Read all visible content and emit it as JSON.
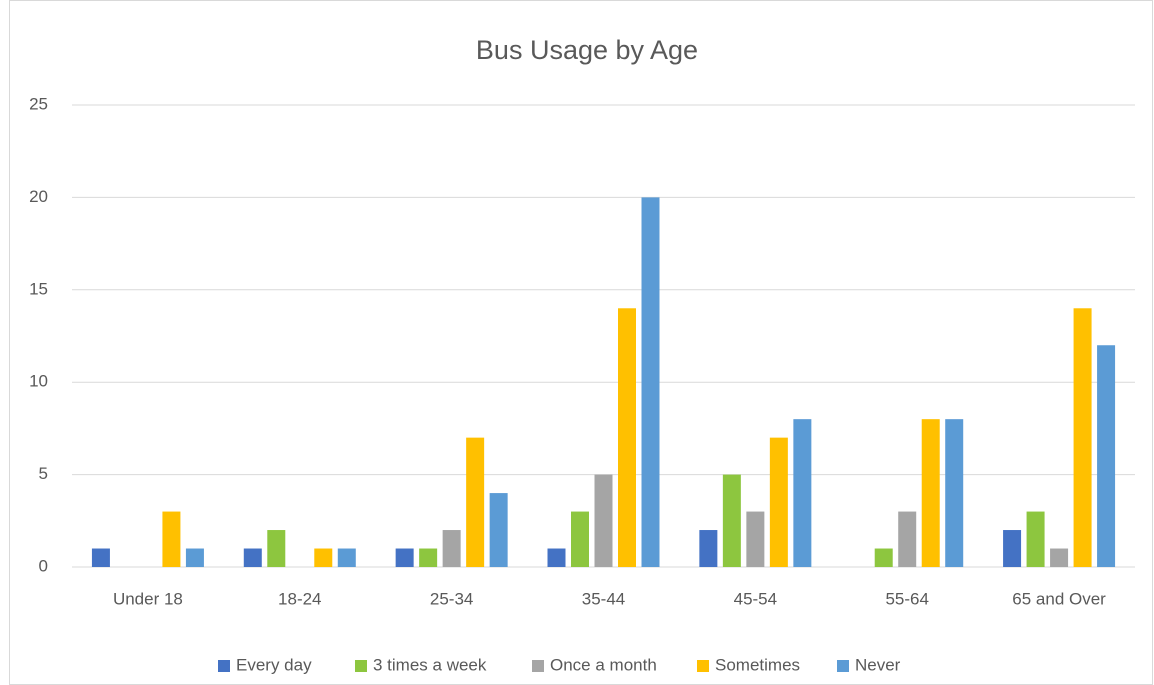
{
  "chart_data": {
    "type": "bar",
    "title": "Bus Usage by Age",
    "categories": [
      "Under 18",
      "18-24",
      "25-34",
      "35-44",
      "45-54",
      "55-64",
      "65 and Over"
    ],
    "series": [
      {
        "name": "Every day",
        "color": "#4472c4",
        "values": [
          1,
          1,
          1,
          1,
          2,
          0,
          2
        ]
      },
      {
        "name": "3 times a week",
        "color": "#8dc63f",
        "values": [
          0,
          2,
          1,
          3,
          5,
          1,
          3
        ]
      },
      {
        "name": "Once a month",
        "color": "#a5a5a5",
        "values": [
          0,
          0,
          2,
          5,
          3,
          3,
          1
        ]
      },
      {
        "name": "Sometimes",
        "color": "#ffc000",
        "values": [
          3,
          1,
          7,
          14,
          7,
          8,
          14
        ]
      },
      {
        "name": "Never",
        "color": "#5b9bd5",
        "values": [
          1,
          1,
          4,
          20,
          8,
          8,
          12
        ]
      }
    ],
    "ylim": [
      0,
      25
    ],
    "yticks": [
      0,
      5,
      10,
      15,
      20,
      25
    ],
    "grid": true,
    "legend": "bottom"
  }
}
